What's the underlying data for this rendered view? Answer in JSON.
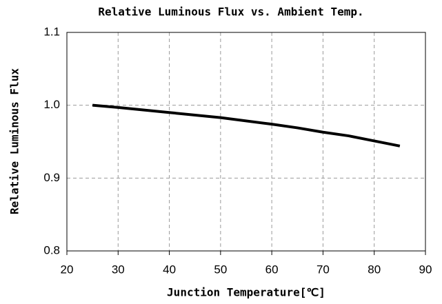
{
  "chart_data": {
    "type": "line",
    "title": "Relative Luminous Flux vs. Ambient Temp.",
    "xlabel": "Junction Temperature[℃]",
    "ylabel": "Relative Luminous Flux",
    "x": [
      25,
      30,
      40,
      50,
      60,
      65,
      70,
      75,
      80,
      85
    ],
    "series": [
      {
        "color": "#000000",
        "values": [
          1.0,
          0.997,
          0.99,
          0.983,
          0.974,
          0.969,
          0.963,
          0.958,
          0.951,
          0.944
        ]
      }
    ],
    "xlim": [
      20,
      90
    ],
    "xticks": [
      20,
      30,
      40,
      50,
      60,
      70,
      80,
      90
    ],
    "ylim": [
      0.8,
      1.1
    ],
    "yticks": [
      0.8,
      0.9,
      {
        "value": 1,
        "label": "1.0"
      },
      1.1
    ],
    "grid": true
  }
}
